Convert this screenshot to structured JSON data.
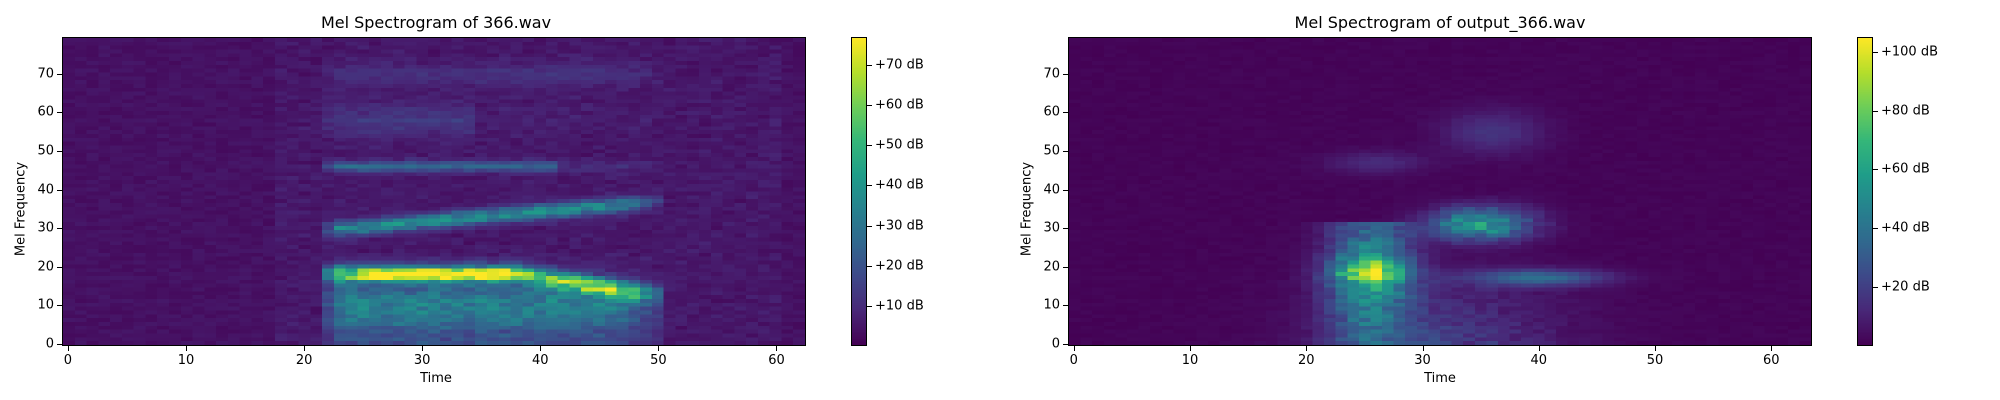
{
  "chart_data": [
    {
      "type": "heatmap",
      "title": "Mel Spectrogram of 366.wav",
      "xlabel": "Time",
      "ylabel": "Mel Frequency",
      "xlim": [
        -0.5,
        62.5
      ],
      "ylim": [
        -0.5,
        79.5
      ],
      "xticks": [
        0,
        10,
        20,
        30,
        40,
        50,
        60
      ],
      "yticks": [
        0,
        10,
        20,
        30,
        40,
        50,
        60,
        70
      ],
      "colormap": "viridis",
      "colorbar": {
        "vmin": 0,
        "vmax": 77,
        "ticks": [
          10,
          20,
          30,
          40,
          50,
          60,
          70
        ],
        "tick_labels": [
          "+10 dB",
          "+20 dB",
          "+30 dB",
          "+40 dB",
          "+50 dB",
          "+60 dB",
          "+70 dB"
        ]
      },
      "features": {
        "active_time_range": [
          22,
          50
        ],
        "bands": [
          {
            "freq_start": 18,
            "freq_end": 13,
            "time_start": 22,
            "time_end": 49,
            "peak_db": 70
          },
          {
            "freq_start": 30,
            "freq_end": 36,
            "time_start": 24,
            "time_end": 47,
            "peak_db": 45
          },
          {
            "freq_start": 46,
            "freq_end": 46,
            "time_start": 22,
            "time_end": 42,
            "peak_db": 25
          }
        ],
        "hot_spot": {
          "time_range": [
            25,
            37
          ],
          "freq_range": [
            17,
            20
          ],
          "peak_db": 76
        }
      }
    },
    {
      "type": "heatmap",
      "title": "Mel Spectrogram of output_366.wav",
      "xlabel": "Time",
      "ylabel": "Mel Frequency",
      "xlim": [
        -0.5,
        63.5
      ],
      "ylim": [
        -0.5,
        79.5
      ],
      "xticks": [
        0,
        10,
        20,
        30,
        40,
        50,
        60
      ],
      "yticks": [
        0,
        10,
        20,
        30,
        40,
        50,
        60,
        70
      ],
      "colormap": "viridis",
      "colorbar": {
        "vmin": 0,
        "vmax": 105,
        "ticks": [
          20,
          40,
          60,
          80,
          100
        ],
        "tick_labels": [
          "+20 dB",
          "+40 dB",
          "+60 dB",
          "+80 dB",
          "+100 dB"
        ]
      },
      "features": {
        "active_time_range": [
          21,
          48
        ],
        "blobs": [
          {
            "time_range": [
              23,
              28
            ],
            "freq_range": [
              15,
              22
            ],
            "peak_db": 100
          },
          {
            "time_range": [
              32,
              38
            ],
            "freq_range": [
              28,
              34
            ],
            "peak_db": 75
          },
          {
            "time_range": [
              37,
              43
            ],
            "freq_range": [
              16,
              18
            ],
            "peak_db": 45
          }
        ]
      }
    }
  ]
}
